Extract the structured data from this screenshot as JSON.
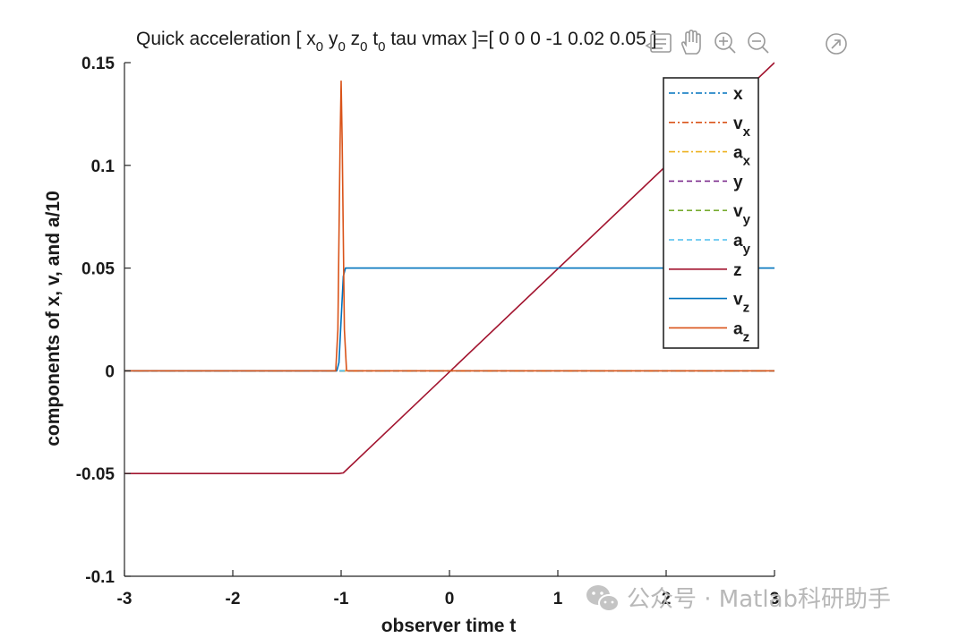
{
  "chart_data": {
    "type": "line",
    "title_parts": {
      "pre": "Quick acceleration  [ x",
      "sub_x": "0",
      "y": " y",
      "sub_y": "0",
      "z": " z",
      "sub_z": "0",
      "t": " t",
      "sub_t": "0",
      "post": " tau vmax ]=[ 0 0 0 -1 0.02 0.05 ]"
    },
    "xlabel": "observer time t",
    "ylabel": "components of  x,  v, and  a/10",
    "xlim": [
      -3,
      3
    ],
    "ylim": [
      -0.1,
      0.15
    ],
    "xticks": [
      -3,
      -2,
      -1,
      0,
      1,
      2,
      3
    ],
    "yticks": [
      -0.1,
      -0.05,
      0,
      0.05,
      0.1,
      0.15
    ],
    "xtick_labels": [
      "-3",
      "-2",
      "-1",
      "0",
      "1",
      "2",
      "3"
    ],
    "ytick_labels": [
      "-0.1",
      "-0.05",
      "0",
      "0.05",
      "0.1",
      "0.15"
    ],
    "grid": false,
    "legend_position": "top-right",
    "series": [
      {
        "name": "x",
        "sub": "",
        "color": "#0072BD",
        "dash": "7,3,2,3",
        "x": [
          -3,
          3
        ],
        "y": [
          0,
          0
        ]
      },
      {
        "name": "v",
        "sub": "x",
        "color": "#D95319",
        "dash": "7,3,2,3",
        "x": [
          -3,
          3
        ],
        "y": [
          0,
          0
        ]
      },
      {
        "name": "a",
        "sub": "x",
        "color": "#EDB120",
        "dash": "7,3,2,3",
        "x": [
          -3,
          3
        ],
        "y": [
          0,
          0
        ]
      },
      {
        "name": "y",
        "sub": "",
        "color": "#7E2F8E",
        "dash": "6,4",
        "x": [
          -3,
          3
        ],
        "y": [
          0,
          0
        ]
      },
      {
        "name": "v",
        "sub": "y",
        "color": "#77AC30",
        "dash": "6,4",
        "x": [
          -3,
          3
        ],
        "y": [
          0,
          0
        ]
      },
      {
        "name": "a",
        "sub": "y",
        "color": "#4DBEEE",
        "dash": "6,4",
        "x": [
          -3,
          3
        ],
        "y": [
          0,
          0
        ]
      },
      {
        "name": "z",
        "sub": "",
        "color": "#A2142F",
        "dash": "",
        "x": [
          -3,
          -1.02,
          -0.98,
          3
        ],
        "y": [
          -0.05,
          -0.05,
          -0.0497,
          0.15
        ]
      },
      {
        "name": "v",
        "sub": "z",
        "color": "#0072BD",
        "dash": "",
        "x": [
          -3,
          -1.04,
          -1.02,
          -1.0,
          -0.98,
          -0.96,
          3
        ],
        "y": [
          0,
          0,
          0.004,
          0.025,
          0.046,
          0.05,
          0.05
        ]
      },
      {
        "name": "a",
        "sub": "z",
        "color": "#D95319",
        "dash": "",
        "x": [
          -3,
          -1.05,
          -1.03,
          -1.01,
          -1.0,
          -0.99,
          -0.97,
          -0.95,
          3
        ],
        "y": [
          0,
          0,
          0.02,
          0.11,
          0.141,
          0.11,
          0.02,
          0,
          0
        ]
      }
    ]
  },
  "toolbar": {
    "icons": [
      "data-tips-icon",
      "pan-hand-icon",
      "zoom-in-icon",
      "zoom-out-icon",
      "restore-view-icon"
    ]
  },
  "watermark": {
    "text": "公众号 · Matlab科研助手",
    "icon": "wechat-icon",
    "color": "#b8b8b8"
  }
}
